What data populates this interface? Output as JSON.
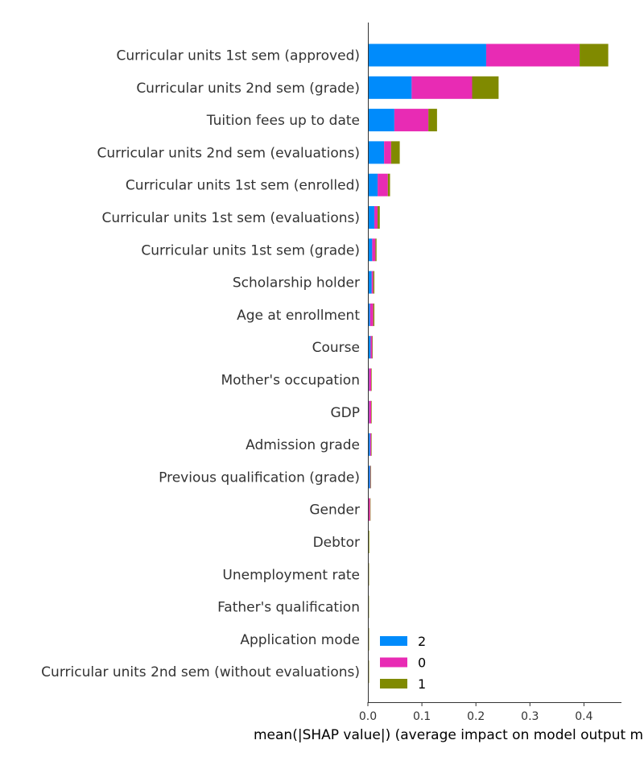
{
  "chart_data": {
    "type": "bar",
    "orientation": "horizontal",
    "stacked": true,
    "title": "",
    "xlabel": "mean(|SHAP value|) (average impact on model output magnitude)",
    "ylabel": "",
    "xlim": [
      0,
      0.465
    ],
    "xticks": [
      0.0,
      0.1,
      0.2,
      0.3,
      0.4
    ],
    "xtick_labels": [
      "0.0",
      "0.1",
      "0.2",
      "0.3",
      "0.4"
    ],
    "grid": false,
    "legend_position": "bottom-right",
    "categories": [
      "Curricular units 1st sem (approved)",
      "Curricular units 2nd sem (grade)",
      "Tuition fees up to date",
      "Curricular units 2nd sem (evaluations)",
      "Curricular units 1st sem (enrolled)",
      "Curricular units 1st sem (evaluations)",
      "Curricular units 1st sem (grade)",
      "Scholarship holder",
      "Age at enrollment",
      "Course",
      "Mother's occupation",
      "GDP",
      "Admission grade",
      "Previous qualification (grade)",
      "Gender",
      "Debtor",
      "Unemployment rate",
      "Father's qualification",
      "Application mode",
      "Curricular units 2nd sem (without evaluations)"
    ],
    "series": [
      {
        "name": "2",
        "color": "#008bfb",
        "values": [
          0.219,
          0.081,
          0.049,
          0.03,
          0.018,
          0.012,
          0.008,
          0.007,
          0.004,
          0.005,
          0.002,
          0.002,
          0.004,
          0.004,
          0.001,
          0.0005,
          0.0008,
          0.0005,
          0.0008,
          0.0008
        ]
      },
      {
        "name": "0",
        "color": "#e82bb4",
        "values": [
          0.173,
          0.112,
          0.063,
          0.013,
          0.019,
          0.006,
          0.006,
          0.003,
          0.006,
          0.003,
          0.004,
          0.004,
          0.002,
          0.001,
          0.003,
          0.0005,
          0.0004,
          0.0006,
          0.0004,
          0.0004
        ]
      },
      {
        "name": "1",
        "color": "#808a00",
        "values": [
          0.053,
          0.049,
          0.016,
          0.016,
          0.004,
          0.004,
          0.002,
          0.002,
          0.002,
          0.001,
          0.001,
          0.001,
          0.0005,
          0.0005,
          0.0003,
          0.0015,
          0.0003,
          0.0003,
          0.0002,
          0.0002
        ]
      }
    ]
  }
}
